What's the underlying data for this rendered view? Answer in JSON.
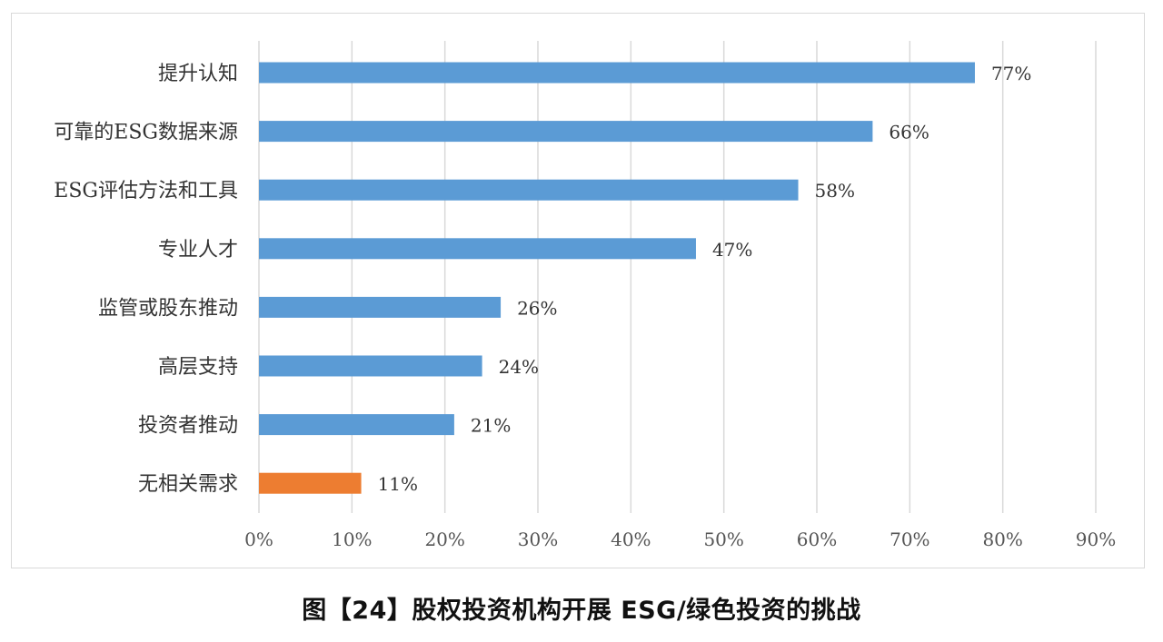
{
  "caption": "图【24】股权投资机构开展 ESG/绿色投资的挑战",
  "chart_data": {
    "type": "bar",
    "orientation": "horizontal",
    "categories": [
      "提升认知",
      "可靠的ESG数据来源",
      "ESG评估方法和工具",
      "专业人才",
      "监管或股东推动",
      "高层支持",
      "投资者推动",
      "无相关需求"
    ],
    "values": [
      77,
      66,
      58,
      47,
      26,
      24,
      21,
      11
    ],
    "value_labels": [
      "77%",
      "66%",
      "58%",
      "47%",
      "26%",
      "24%",
      "21%",
      "11%"
    ],
    "bar_colors": [
      "#5b9bd5",
      "#5b9bd5",
      "#5b9bd5",
      "#5b9bd5",
      "#5b9bd5",
      "#5b9bd5",
      "#5b9bd5",
      "#ed7d31"
    ],
    "xlim": [
      0,
      90
    ],
    "x_ticks": [
      "0%",
      "10%",
      "20%",
      "30%",
      "40%",
      "50%",
      "60%",
      "70%",
      "80%",
      "90%"
    ],
    "grid": true,
    "legend": "none"
  }
}
